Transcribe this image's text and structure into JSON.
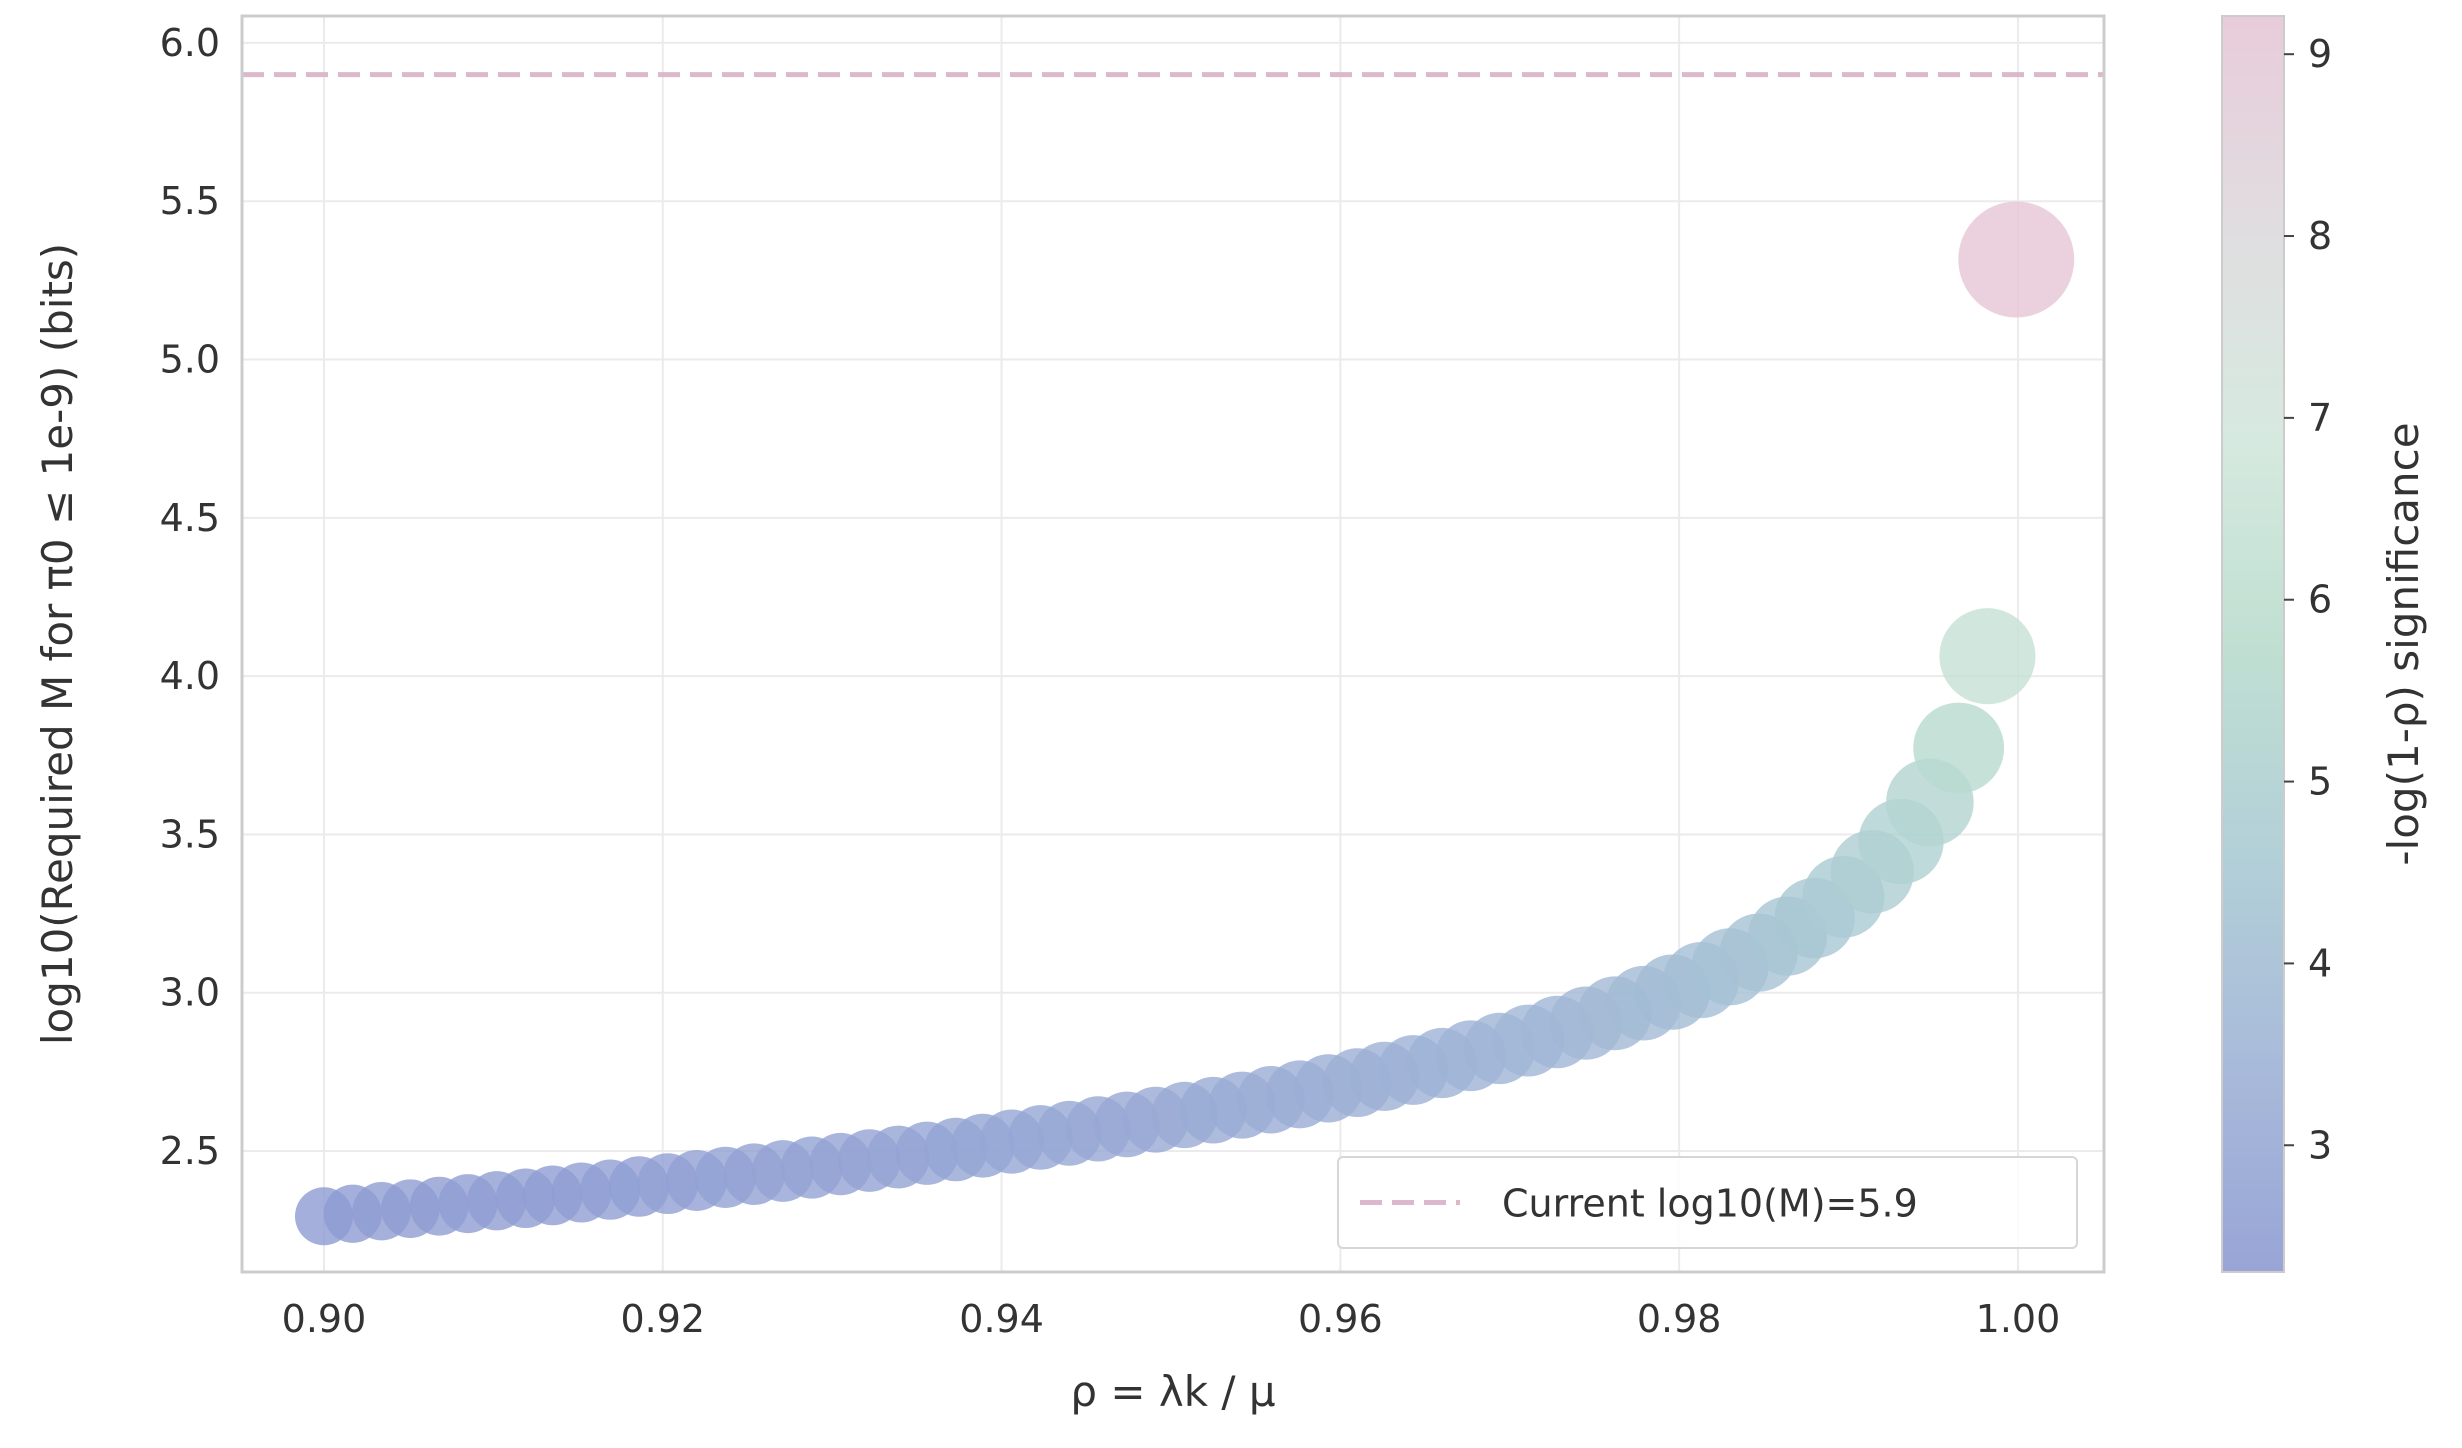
{
  "chart_data": {
    "type": "scatter",
    "xlabel": "ρ = λk / μ",
    "ylabel": "log10(Required M for π0 ≤ 1e-9) (bits)",
    "x": [
      0.9,
      0.9017,
      0.9034,
      0.9051,
      0.9068,
      0.9085,
      0.9102,
      0.9119,
      0.9135,
      0.9152,
      0.9169,
      0.9186,
      0.9203,
      0.922,
      0.9237,
      0.9254,
      0.9271,
      0.9288,
      0.9305,
      0.9322,
      0.9339,
      0.9356,
      0.9373,
      0.9389,
      0.9406,
      0.9423,
      0.944,
      0.9457,
      0.9474,
      0.9491,
      0.9508,
      0.9525,
      0.9542,
      0.9559,
      0.9576,
      0.9593,
      0.961,
      0.9626,
      0.9643,
      0.966,
      0.9677,
      0.9694,
      0.9711,
      0.9728,
      0.9745,
      0.9762,
      0.9779,
      0.9796,
      0.9813,
      0.983,
      0.9847,
      0.9864,
      0.988,
      0.9897,
      0.9914,
      0.9931,
      0.9948,
      0.9965,
      0.9982,
      0.9999
    ],
    "values": [
      2.294,
      2.302,
      2.31,
      2.318,
      2.326,
      2.334,
      2.343,
      2.351,
      2.36,
      2.369,
      2.378,
      2.388,
      2.397,
      2.407,
      2.417,
      2.427,
      2.437,
      2.448,
      2.459,
      2.47,
      2.481,
      2.493,
      2.505,
      2.517,
      2.53,
      2.543,
      2.556,
      2.57,
      2.584,
      2.599,
      2.614,
      2.629,
      2.645,
      2.662,
      2.679,
      2.698,
      2.716,
      2.736,
      2.756,
      2.778,
      2.801,
      2.824,
      2.849,
      2.876,
      2.904,
      2.935,
      2.967,
      3.002,
      3.04,
      3.082,
      3.127,
      3.179,
      3.236,
      3.303,
      3.382,
      3.478,
      3.601,
      3.773,
      4.063,
      5.316
    ],
    "color_values": [
      2.303,
      2.32,
      2.337,
      2.355,
      2.373,
      2.391,
      2.41,
      2.429,
      2.448,
      2.468,
      2.488,
      2.509,
      2.53,
      2.551,
      2.573,
      2.596,
      2.619,
      2.642,
      2.666,
      2.691,
      2.716,
      2.742,
      2.769,
      2.796,
      2.824,
      2.853,
      2.883,
      2.914,
      2.945,
      2.978,
      3.012,
      3.047,
      3.083,
      3.121,
      3.16,
      3.201,
      3.243,
      3.287,
      3.334,
      3.382,
      3.434,
      3.487,
      3.544,
      3.605,
      3.669,
      3.738,
      3.812,
      3.891,
      3.978,
      4.073,
      4.177,
      4.294,
      4.427,
      4.58,
      4.76,
      4.98,
      5.263,
      5.659,
      6.324,
      9.21
    ],
    "xlim": [
      0.89516,
      1.00508
    ],
    "ylim": [
      2.118,
      6.085
    ],
    "xticks": [
      {
        "value": 0.9,
        "label": "0.90"
      },
      {
        "value": 0.92,
        "label": "0.92"
      },
      {
        "value": 0.94,
        "label": "0.94"
      },
      {
        "value": 0.96,
        "label": "0.96"
      },
      {
        "value": 0.98,
        "label": "0.98"
      },
      {
        "value": 1.0,
        "label": "1.00"
      }
    ],
    "yticks": [
      2.5,
      {
        "value": 3.0,
        "label": "3.0"
      },
      3.5,
      {
        "value": 4.0,
        "label": "4.0"
      },
      4.5,
      {
        "value": 5.0,
        "label": "5.0"
      },
      5.5,
      {
        "value": 6.0,
        "label": "6.0"
      }
    ],
    "grid": true,
    "hline": {
      "value": 5.9,
      "label": "Current log10(M)=5.9",
      "color": "#dcb8cc"
    },
    "legend": "lower right",
    "colorbar": {
      "label": "-log(1-ρ) significance",
      "lim": [
        2.303,
        9.21
      ],
      "ticks": [
        3,
        4,
        5,
        6,
        7,
        8,
        9
      ],
      "colormap": [
        "#8d9bd2",
        "#9fb3d6",
        "#aacbd3",
        "#b9dccd",
        "#d2e7dc",
        "#ddd9dc",
        "#e6c6d6"
      ]
    }
  }
}
